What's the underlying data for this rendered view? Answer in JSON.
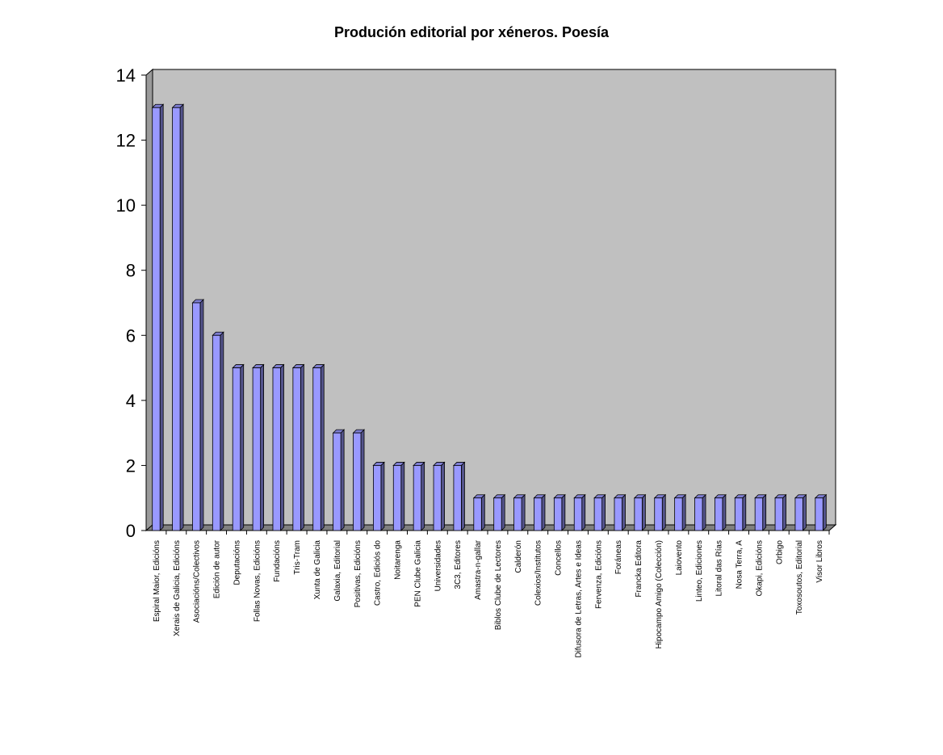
{
  "chart_data": {
    "type": "bar",
    "title": "Produción editorial por xéneros. Poesía",
    "xlabel": "",
    "ylabel": "",
    "ylim": [
      0,
      14
    ],
    "yticks": [
      0,
      2,
      4,
      6,
      8,
      10,
      12,
      14
    ],
    "grid": false,
    "legend": "none",
    "bar_color": "#9999ff",
    "plot_background": "#c0c0c0",
    "categories": [
      "Espiral Maior, Edicións",
      "Xerais de Galicia, Edicións",
      "Asociacións/Colectivos",
      "Edición de autor",
      "Deputacións",
      "Follas Novas, Edicións",
      "Fundacións",
      "Tris-Tram",
      "Xunta de Galicia",
      "Galaxia, Editorial",
      "Positivas, Edicións",
      "Castro, Ediciós do",
      "Noitarenga",
      "PEN Clube Galicia",
      "Universidades",
      "3C3, Editores",
      "Amastra-n-gallar",
      "Biblos Clube de Lectores",
      "Calderón",
      "Colexios/Institutos",
      "Concellos",
      "Difusora de Letras, Artes e Ideas",
      "Fervenza, Edicións",
      "Foráneas",
      "Francka Editora",
      "Hipocampo Amigo (Colección)",
      "Laiovento",
      "Linteo, Ediciones",
      "Litoral das Rías",
      "Nosa Terra, A",
      "Okapi, Edicións",
      "Orbigo",
      "Toxosoutos, Editorial",
      "Visor Libros"
    ],
    "values": [
      13,
      13,
      7,
      6,
      5,
      5,
      5,
      5,
      5,
      3,
      3,
      2,
      2,
      2,
      2,
      2,
      1,
      1,
      1,
      1,
      1,
      1,
      1,
      1,
      1,
      1,
      1,
      1,
      1,
      1,
      1,
      1,
      1,
      1
    ]
  }
}
